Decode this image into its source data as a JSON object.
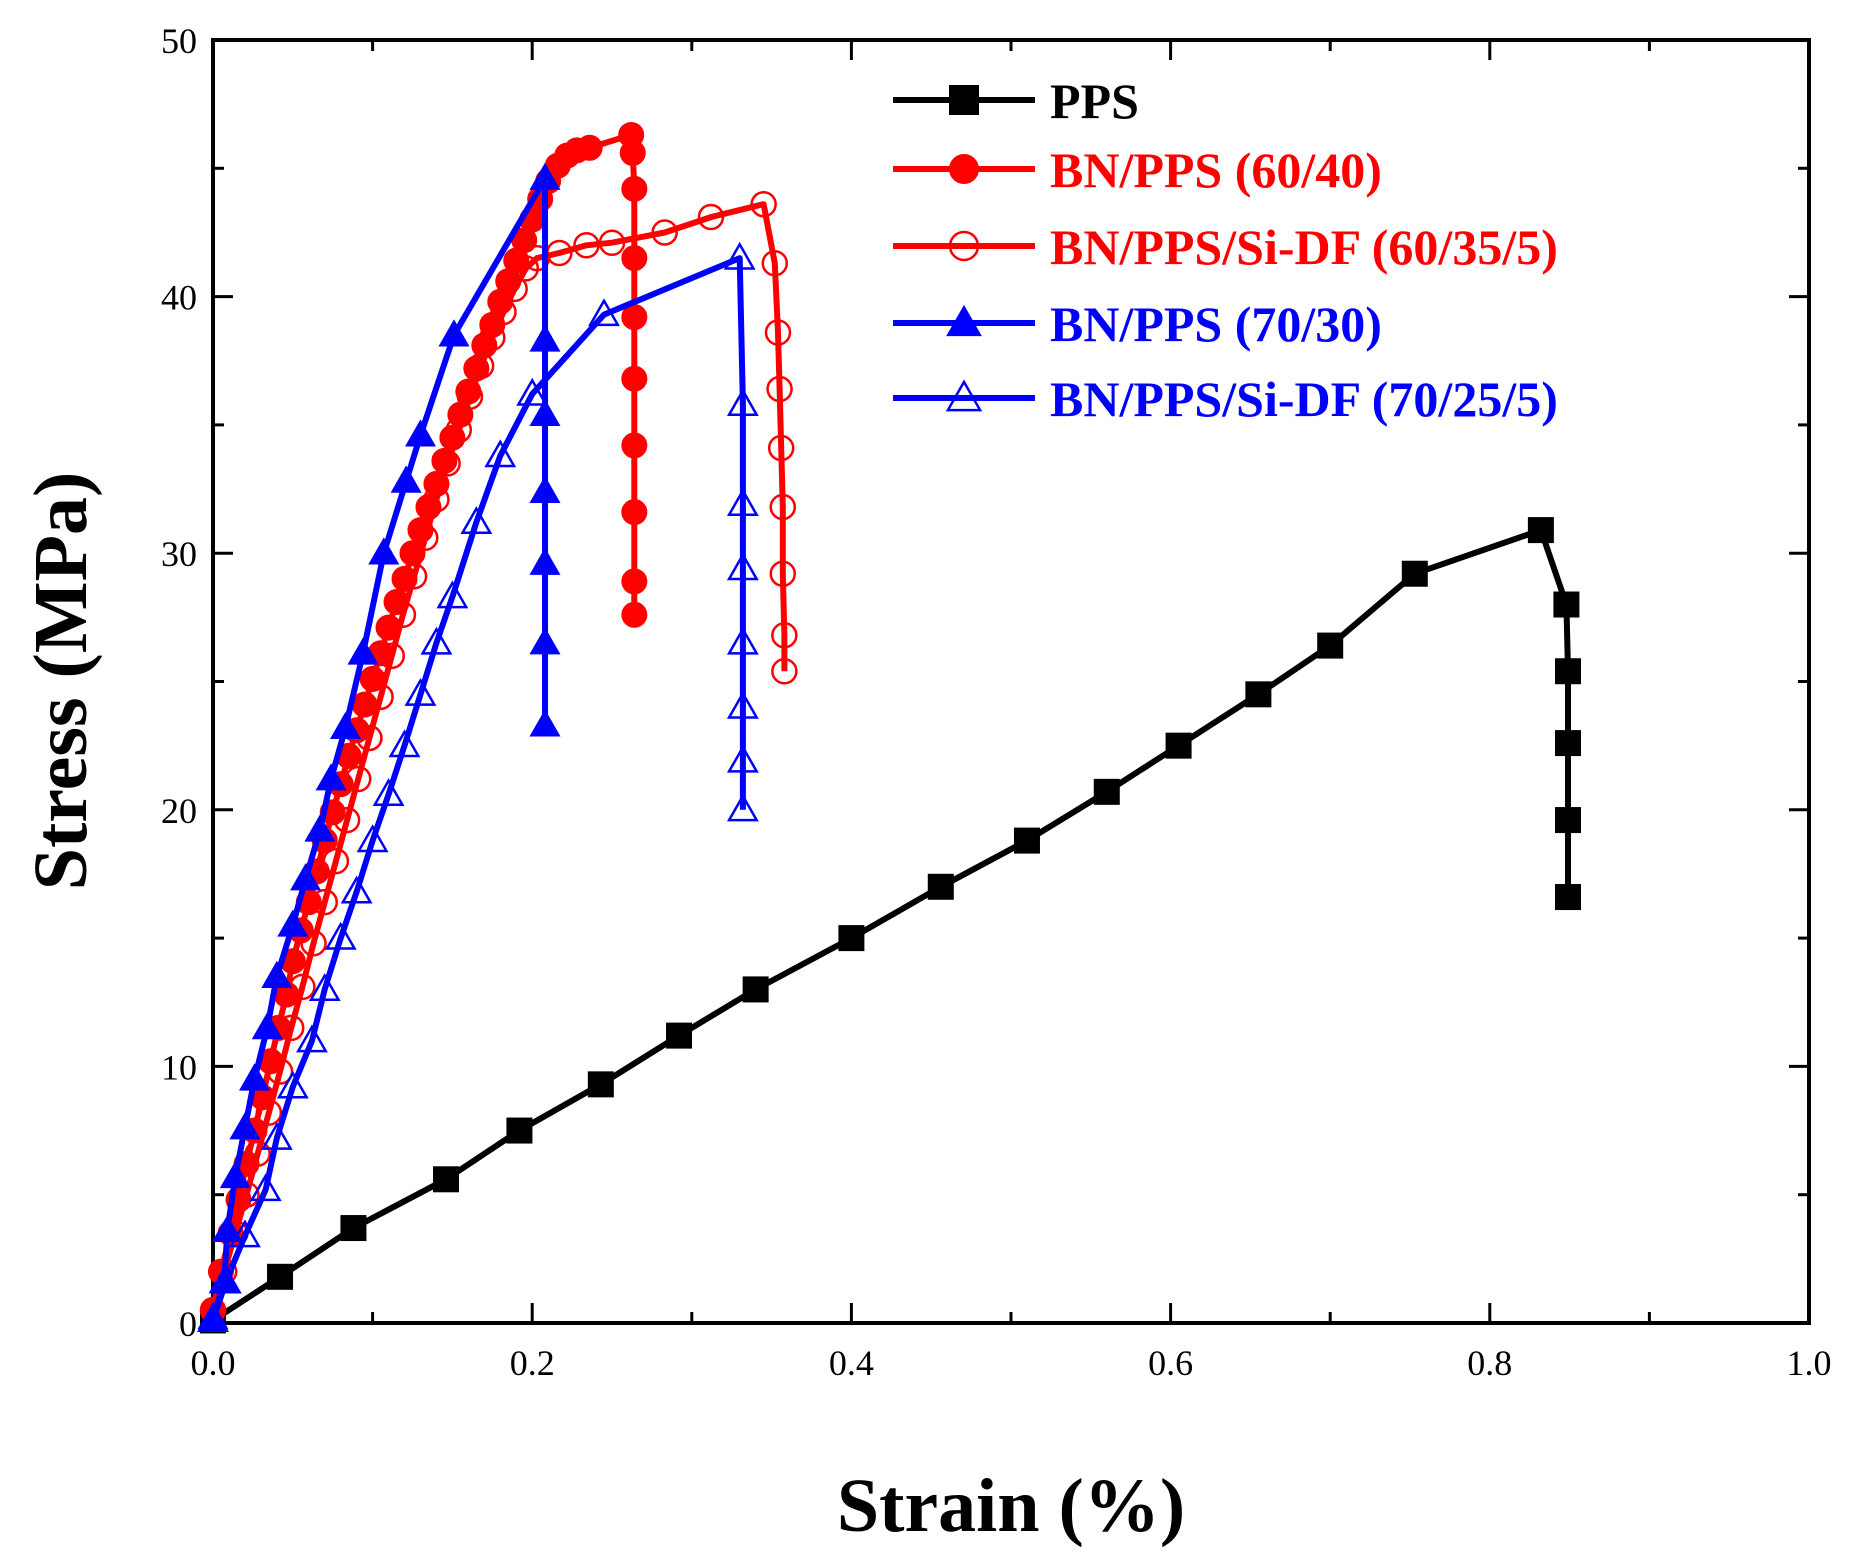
{
  "chart_data": {
    "type": "line",
    "title": "",
    "xlabel": "Strain (%)",
    "ylabel": "Stress (MPa)",
    "xlim": [
      0.0,
      1.0
    ],
    "ylim": [
      0,
      50
    ],
    "x_ticks": [
      "0.0",
      "0.2",
      "0.4",
      "0.6",
      "0.8",
      "1.0"
    ],
    "y_ticks": [
      "0",
      "10",
      "20",
      "30",
      "40",
      "50"
    ],
    "x_tick_values": [
      0.0,
      0.2,
      0.4,
      0.6,
      0.8,
      1.0
    ],
    "y_tick_values": [
      0,
      10,
      20,
      30,
      40,
      50
    ],
    "grid": false,
    "legend_position": "top-right",
    "series": [
      {
        "name": "PPS",
        "color": "#000000",
        "marker": "square-filled",
        "points": [
          [
            0.0,
            0.1
          ],
          [
            0.042,
            1.8
          ],
          [
            0.088,
            3.7
          ],
          [
            0.146,
            5.6
          ],
          [
            0.192,
            7.5
          ],
          [
            0.243,
            9.3
          ],
          [
            0.292,
            11.2
          ],
          [
            0.34,
            13.0
          ],
          [
            0.4,
            15.0
          ],
          [
            0.456,
            17.0
          ],
          [
            0.51,
            18.8
          ],
          [
            0.56,
            20.7
          ],
          [
            0.605,
            22.5
          ],
          [
            0.655,
            24.5
          ],
          [
            0.7,
            26.4
          ],
          [
            0.753,
            29.2
          ],
          [
            0.832,
            30.9
          ],
          [
            0.848,
            28.0
          ],
          [
            0.849,
            25.4
          ],
          [
            0.849,
            22.6
          ],
          [
            0.849,
            19.6
          ],
          [
            0.849,
            16.6
          ]
        ]
      },
      {
        "name": "BN/PPS (60/40)",
        "color": "#ff0000",
        "marker": "circle-filled",
        "points": [
          [
            0.0,
            0.5
          ],
          [
            0.005,
            2.0
          ],
          [
            0.011,
            3.5
          ],
          [
            0.016,
            4.8
          ],
          [
            0.021,
            6.2
          ],
          [
            0.026,
            7.5
          ],
          [
            0.031,
            8.8
          ],
          [
            0.036,
            10.2
          ],
          [
            0.041,
            11.5
          ],
          [
            0.046,
            12.8
          ],
          [
            0.05,
            14.1
          ],
          [
            0.055,
            15.3
          ],
          [
            0.06,
            16.4
          ],
          [
            0.065,
            17.6
          ],
          [
            0.07,
            18.8
          ],
          [
            0.075,
            19.9
          ],
          [
            0.08,
            21.0
          ],
          [
            0.085,
            22.1
          ],
          [
            0.09,
            23.1
          ],
          [
            0.095,
            24.1
          ],
          [
            0.1,
            25.1
          ],
          [
            0.105,
            26.1
          ],
          [
            0.11,
            27.1
          ],
          [
            0.115,
            28.1
          ],
          [
            0.12,
            29.0
          ],
          [
            0.125,
            30.0
          ],
          [
            0.13,
            30.9
          ],
          [
            0.135,
            31.8
          ],
          [
            0.14,
            32.7
          ],
          [
            0.145,
            33.6
          ],
          [
            0.15,
            34.5
          ],
          [
            0.155,
            35.4
          ],
          [
            0.16,
            36.3
          ],
          [
            0.165,
            37.2
          ],
          [
            0.17,
            38.1
          ],
          [
            0.175,
            38.9
          ],
          [
            0.18,
            39.8
          ],
          [
            0.185,
            40.6
          ],
          [
            0.19,
            41.4
          ],
          [
            0.195,
            42.2
          ],
          [
            0.2,
            43.0
          ],
          [
            0.205,
            43.8
          ],
          [
            0.21,
            44.5
          ],
          [
            0.216,
            45.1
          ],
          [
            0.222,
            45.5
          ],
          [
            0.228,
            45.7
          ],
          [
            0.236,
            45.8
          ],
          [
            0.262,
            46.3
          ],
          [
            0.263,
            45.6
          ],
          [
            0.264,
            44.2
          ],
          [
            0.264,
            41.5
          ],
          [
            0.264,
            39.2
          ],
          [
            0.264,
            36.8
          ],
          [
            0.264,
            34.2
          ],
          [
            0.264,
            31.6
          ],
          [
            0.264,
            28.9
          ],
          [
            0.264,
            27.6
          ]
        ]
      },
      {
        "name": "BN/PPS/Si-DF (60/35/5)",
        "color": "#ff0000",
        "marker": "circle-open",
        "points": [
          [
            0.0,
            0.5
          ],
          [
            0.007,
            2.0
          ],
          [
            0.014,
            3.5
          ],
          [
            0.021,
            5.0
          ],
          [
            0.028,
            6.6
          ],
          [
            0.035,
            8.2
          ],
          [
            0.042,
            9.8
          ],
          [
            0.049,
            11.5
          ],
          [
            0.056,
            13.1
          ],
          [
            0.063,
            14.8
          ],
          [
            0.07,
            16.4
          ],
          [
            0.077,
            18.0
          ],
          [
            0.084,
            19.6
          ],
          [
            0.091,
            21.2
          ],
          [
            0.098,
            22.8
          ],
          [
            0.105,
            24.4
          ],
          [
            0.112,
            26.0
          ],
          [
            0.119,
            27.6
          ],
          [
            0.126,
            29.1
          ],
          [
            0.133,
            30.6
          ],
          [
            0.14,
            32.1
          ],
          [
            0.147,
            33.5
          ],
          [
            0.154,
            34.8
          ],
          [
            0.161,
            36.1
          ],
          [
            0.168,
            37.3
          ],
          [
            0.175,
            38.4
          ],
          [
            0.182,
            39.4
          ],
          [
            0.189,
            40.3
          ],
          [
            0.196,
            41.1
          ],
          [
            0.203,
            41.5
          ],
          [
            0.217,
            41.7
          ],
          [
            0.234,
            42.0
          ],
          [
            0.25,
            42.1
          ],
          [
            0.283,
            42.5
          ],
          [
            0.312,
            43.1
          ],
          [
            0.345,
            43.6
          ],
          [
            0.352,
            41.3
          ],
          [
            0.354,
            38.6
          ],
          [
            0.355,
            36.4
          ],
          [
            0.356,
            34.1
          ],
          [
            0.357,
            31.8
          ],
          [
            0.357,
            29.2
          ],
          [
            0.358,
            26.8
          ],
          [
            0.358,
            25.4
          ]
        ]
      },
      {
        "name": "BN/PPS (70/30)",
        "color": "#0000ff",
        "marker": "triangle-filled",
        "points": [
          [
            0.0,
            0.2
          ],
          [
            0.007,
            1.6
          ],
          [
            0.009,
            3.6
          ],
          [
            0.014,
            5.7
          ],
          [
            0.02,
            7.6
          ],
          [
            0.026,
            9.5
          ],
          [
            0.034,
            11.5
          ],
          [
            0.04,
            13.5
          ],
          [
            0.05,
            15.5
          ],
          [
            0.058,
            17.3
          ],
          [
            0.067,
            19.2
          ],
          [
            0.074,
            21.2
          ],
          [
            0.083,
            23.2
          ],
          [
            0.094,
            26.1
          ],
          [
            0.107,
            30.0
          ],
          [
            0.121,
            32.8
          ],
          [
            0.13,
            34.6
          ],
          [
            0.151,
            38.5
          ],
          [
            0.208,
            44.6
          ],
          [
            0.208,
            38.3
          ],
          [
            0.208,
            35.4
          ],
          [
            0.208,
            32.4
          ],
          [
            0.208,
            29.6
          ],
          [
            0.208,
            26.5
          ],
          [
            0.208,
            23.3
          ]
        ]
      },
      {
        "name": "BN/PPS/Si-DF (70/25/5)",
        "color": "#0000ff",
        "marker": "triangle-open",
        "points": [
          [
            0.0,
            0.1
          ],
          [
            0.008,
            1.6
          ],
          [
            0.02,
            3.4
          ],
          [
            0.033,
            5.2
          ],
          [
            0.04,
            7.2
          ],
          [
            0.05,
            9.2
          ],
          [
            0.062,
            11.0
          ],
          [
            0.07,
            13.0
          ],
          [
            0.08,
            15.0
          ],
          [
            0.09,
            16.8
          ],
          [
            0.1,
            18.8
          ],
          [
            0.11,
            20.6
          ],
          [
            0.12,
            22.5
          ],
          [
            0.13,
            24.5
          ],
          [
            0.14,
            26.5
          ],
          [
            0.15,
            28.3
          ],
          [
            0.165,
            31.2
          ],
          [
            0.18,
            33.8
          ],
          [
            0.2,
            36.2
          ],
          [
            0.245,
            39.3
          ],
          [
            0.33,
            41.5
          ],
          [
            0.332,
            35.8
          ],
          [
            0.332,
            31.9
          ],
          [
            0.332,
            29.4
          ],
          [
            0.332,
            26.5
          ],
          [
            0.332,
            24.0
          ],
          [
            0.332,
            21.9
          ],
          [
            0.332,
            20.0
          ]
        ]
      }
    ]
  }
}
